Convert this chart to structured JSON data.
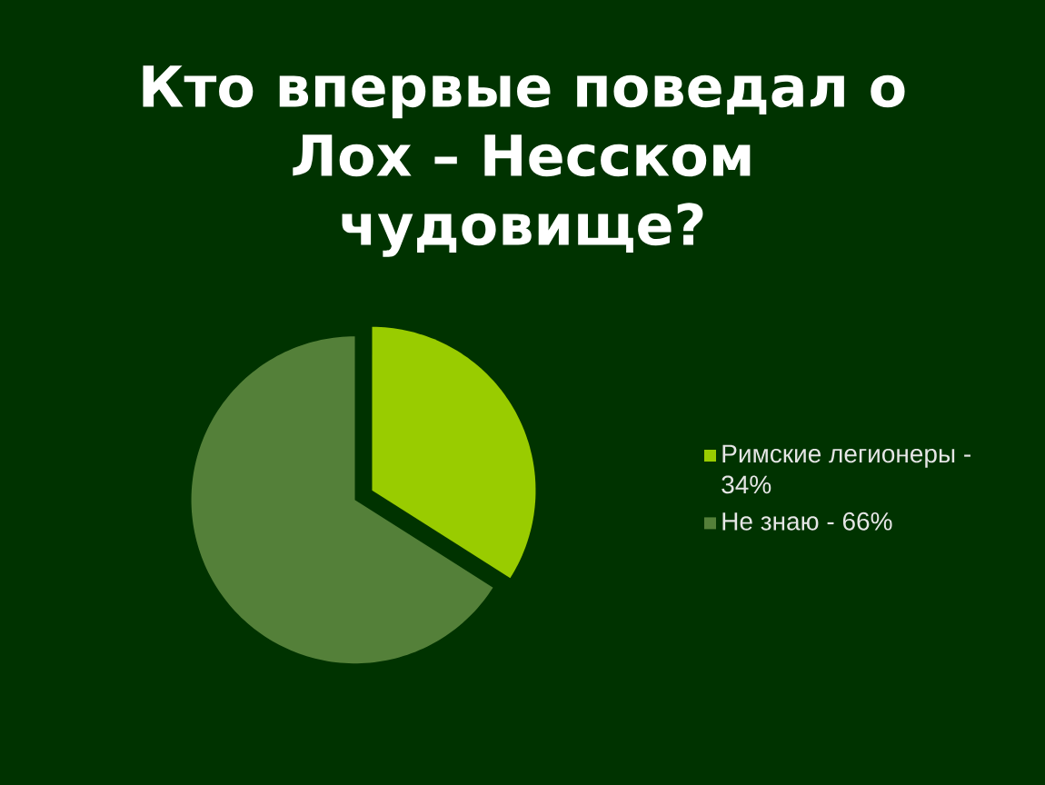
{
  "chart_data": {
    "type": "pie",
    "title": "Кто впервые поведал о Лох – Несском чудовище?",
    "categories": [
      "Римские легионеры - 34%",
      "Не знаю - 66%"
    ],
    "values": [
      34,
      66
    ],
    "colors": [
      "#99cc00",
      "#548039"
    ],
    "legend": "right"
  }
}
